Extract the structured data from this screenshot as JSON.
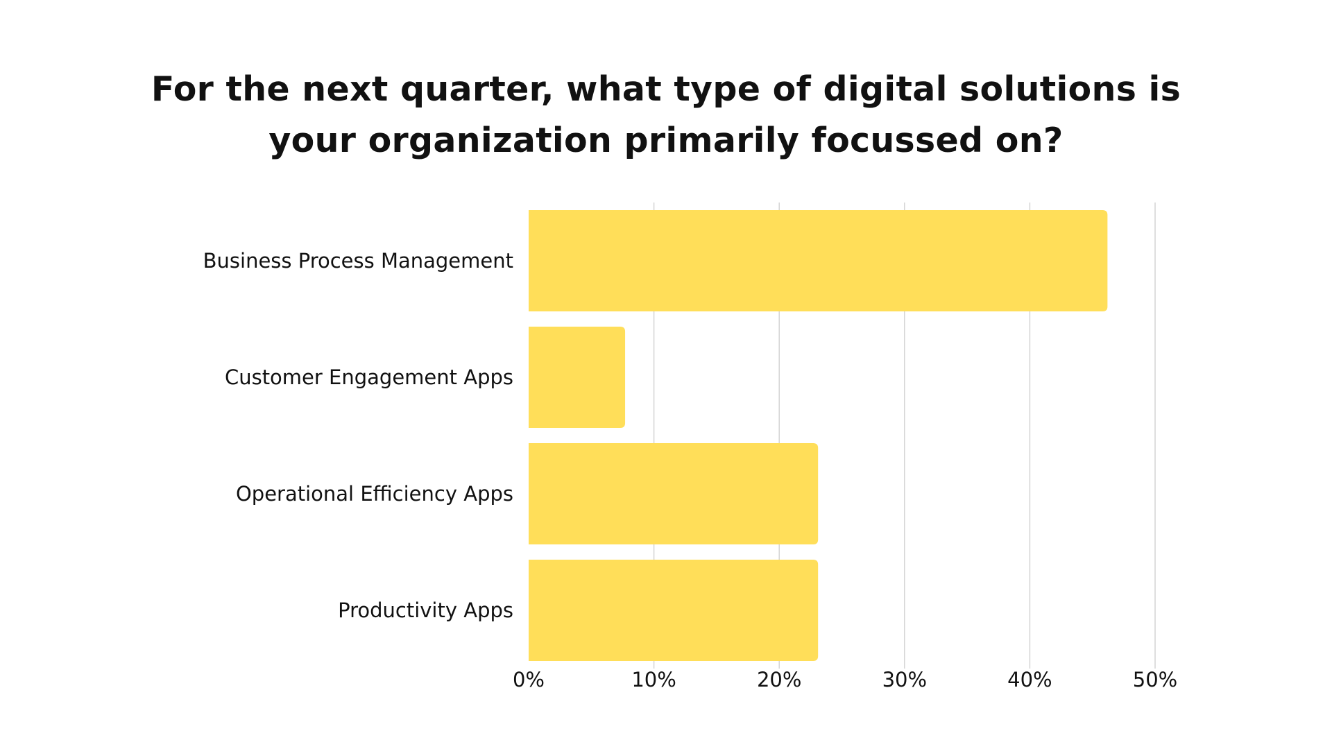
{
  "chart_data": {
    "type": "bar",
    "orientation": "horizontal",
    "title": "For the next quarter, what type of digital solutions is your organization primarily focussed on?",
    "categories": [
      "Business Process Management",
      "Customer Engagement Apps",
      "Operational Efficiency Apps",
      "Productivity Apps"
    ],
    "values": [
      46.2,
      7.7,
      23.1,
      23.1
    ],
    "xlim": [
      0,
      50
    ],
    "x_ticks": [
      0,
      10,
      20,
      30,
      40,
      50
    ],
    "x_tick_labels": [
      "0%",
      "10%",
      "20%",
      "30%",
      "40%",
      "50%"
    ],
    "xlabel": "",
    "ylabel": "",
    "grid": true,
    "legend": "none",
    "bar_color": "#FFDE59",
    "grid_color": "#D4D4D4",
    "text_color": "#111111"
  }
}
